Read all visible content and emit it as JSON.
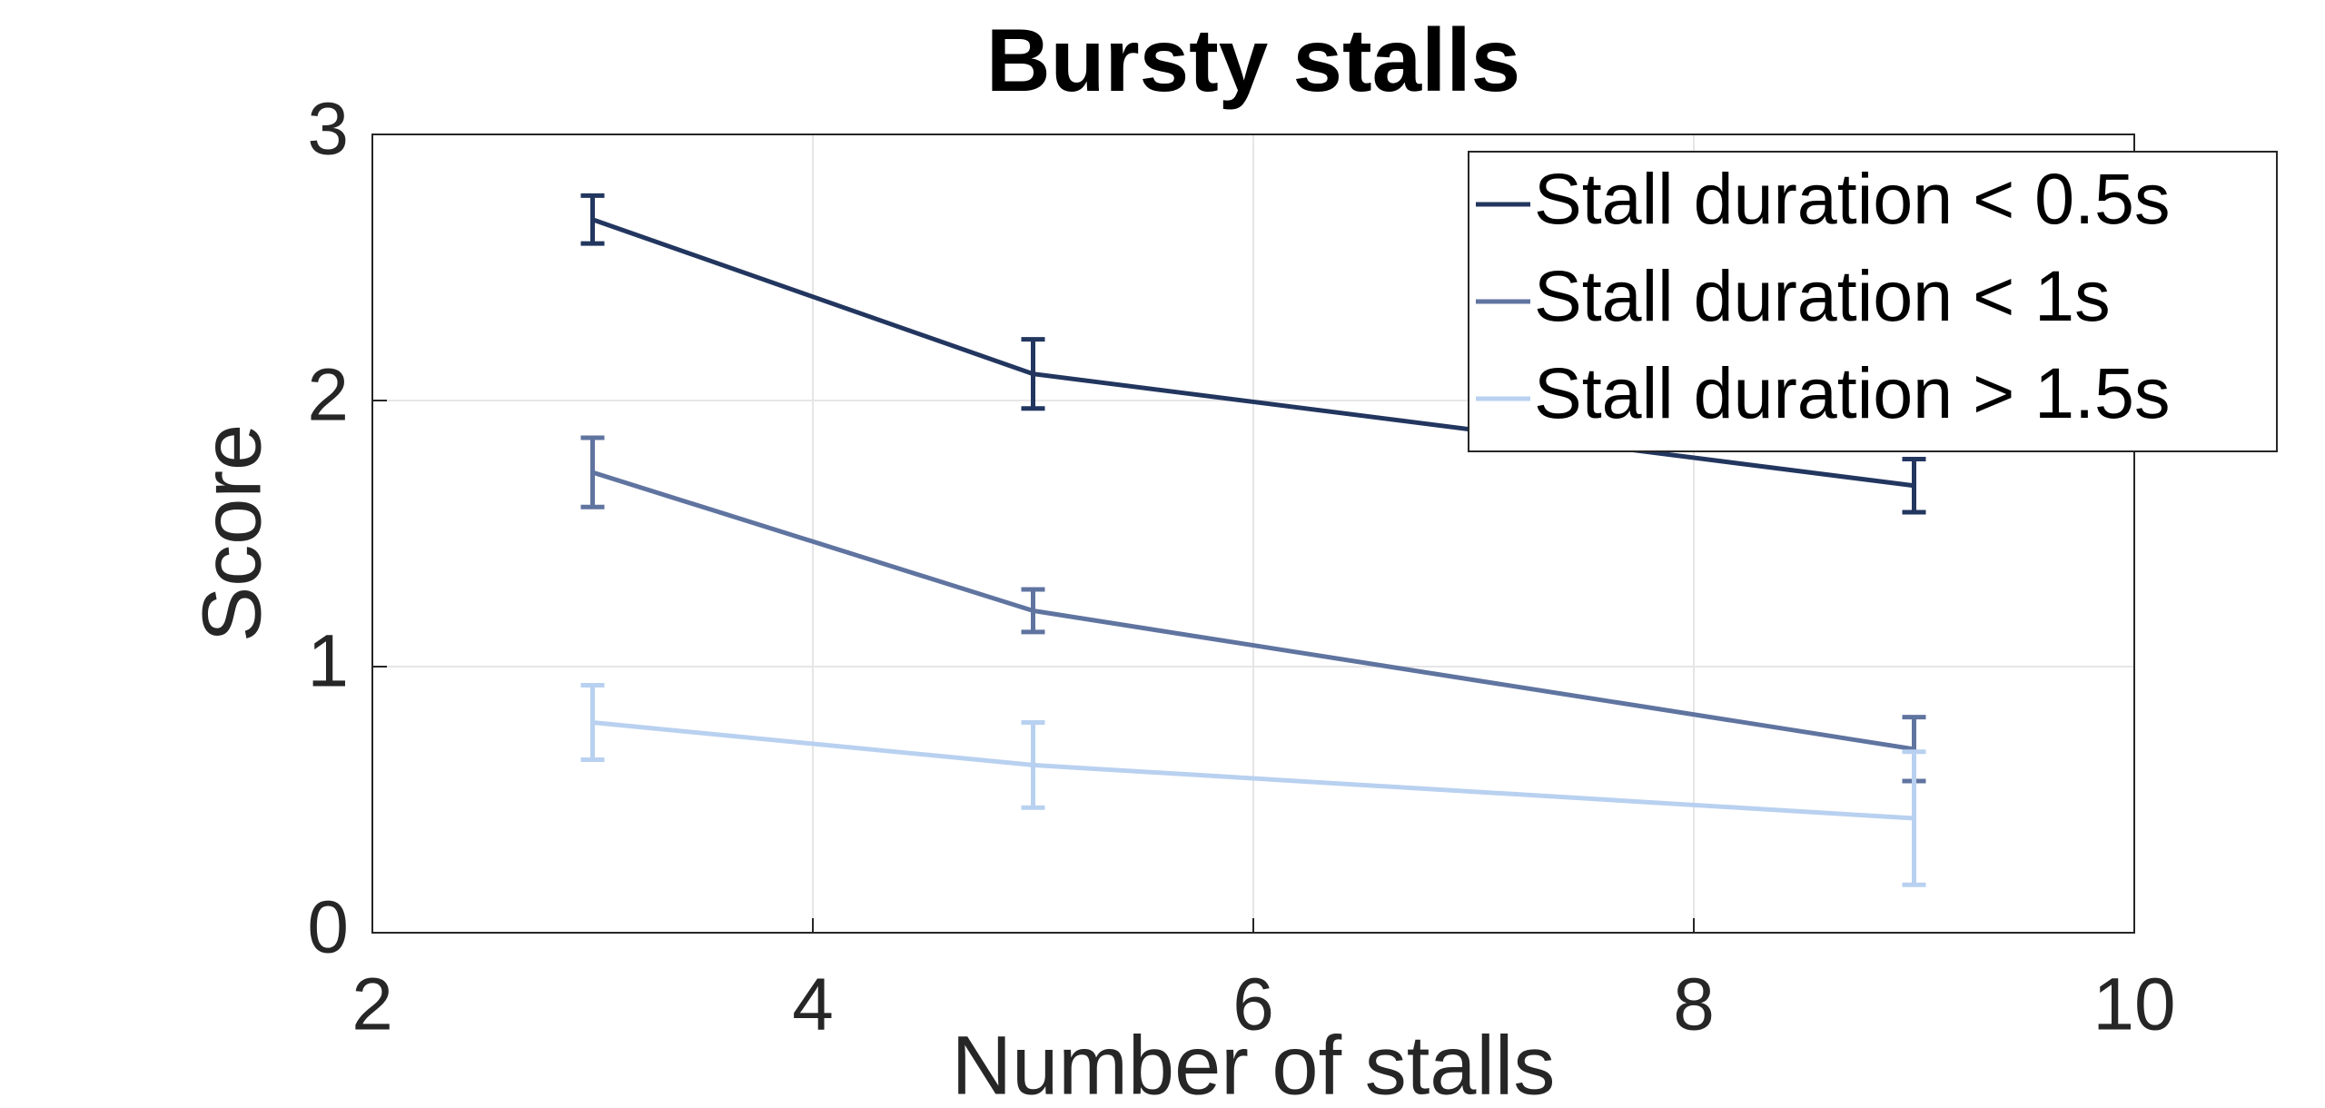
{
  "chart_data": {
    "type": "line",
    "title": "Bursty stalls",
    "x_label": "Number of stalls",
    "y_label": "Score",
    "x": [
      3,
      5,
      9
    ],
    "series": [
      {
        "name": "Stall duration < 0.5s",
        "color": "#22365f",
        "values": [
          2.68,
          2.1,
          1.68
        ],
        "errors": [
          0.09,
          0.13,
          0.1
        ]
      },
      {
        "name": "Stall duration < 1s",
        "color": "#6074a0",
        "values": [
          1.73,
          1.21,
          0.69
        ],
        "errors": [
          0.13,
          0.08,
          0.12
        ]
      },
      {
        "name": "Stall duration > 1.5s",
        "color": "#b9d1f0",
        "values": [
          0.79,
          0.63,
          0.43
        ],
        "errors": [
          0.14,
          0.16,
          0.25
        ]
      }
    ],
    "xlim": [
      2,
      10
    ],
    "xticks": [
      2,
      4,
      6,
      8,
      10
    ],
    "ylim": [
      0,
      3
    ],
    "yticks": [
      0,
      1,
      2,
      3
    ],
    "grid": true,
    "legend": "upper right"
  }
}
